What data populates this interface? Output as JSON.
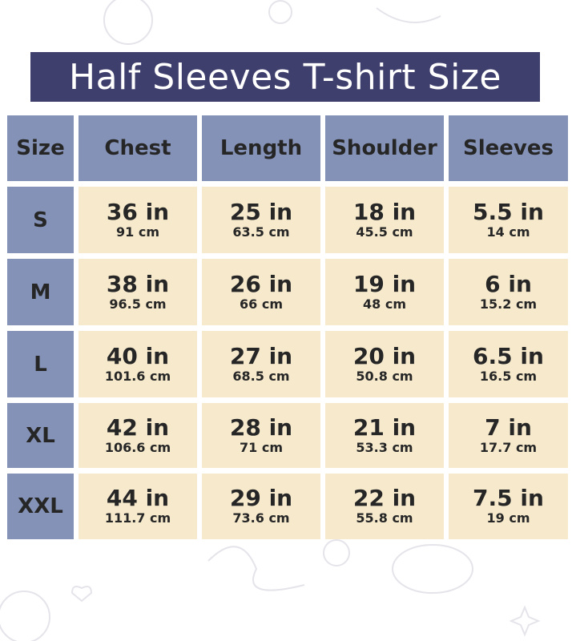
{
  "title": "Half Sleeves T-shirt Size",
  "colors": {
    "title_bg": "#3f3f6e",
    "header_bg": "#8592b7",
    "cell_bg": "#f6e9cc",
    "text": "#262626"
  },
  "headers": [
    "Size",
    "Chest",
    "Length",
    "Shoulder",
    "Sleeves"
  ],
  "rows": [
    {
      "size": "S",
      "values": [
        {
          "in": "36 in",
          "cm": "91 cm"
        },
        {
          "in": "25 in",
          "cm": "63.5 cm"
        },
        {
          "in": "18 in",
          "cm": "45.5 cm"
        },
        {
          "in": "5.5 in",
          "cm": "14 cm"
        }
      ]
    },
    {
      "size": "M",
      "values": [
        {
          "in": "38 in",
          "cm": "96.5 cm"
        },
        {
          "in": "26 in",
          "cm": "66 cm"
        },
        {
          "in": "19 in",
          "cm": "48 cm"
        },
        {
          "in": "6 in",
          "cm": "15.2 cm"
        }
      ]
    },
    {
      "size": "L",
      "values": [
        {
          "in": "40 in",
          "cm": "101.6 cm"
        },
        {
          "in": "27 in",
          "cm": "68.5 cm"
        },
        {
          "in": "20 in",
          "cm": "50.8 cm"
        },
        {
          "in": "6.5 in",
          "cm": "16.5 cm"
        }
      ]
    },
    {
      "size": "XL",
      "values": [
        {
          "in": "42 in",
          "cm": "106.6 cm"
        },
        {
          "in": "28 in",
          "cm": "71 cm"
        },
        {
          "in": "21 in",
          "cm": "53.3 cm"
        },
        {
          "in": "7 in",
          "cm": "17.7 cm"
        }
      ]
    },
    {
      "size": "XXL",
      "values": [
        {
          "in": "44 in",
          "cm": "111.7 cm"
        },
        {
          "in": "29 in",
          "cm": "73.6 cm"
        },
        {
          "in": "22 in",
          "cm": "55.8 cm"
        },
        {
          "in": "7.5 in",
          "cm": "19 cm"
        }
      ]
    }
  ]
}
